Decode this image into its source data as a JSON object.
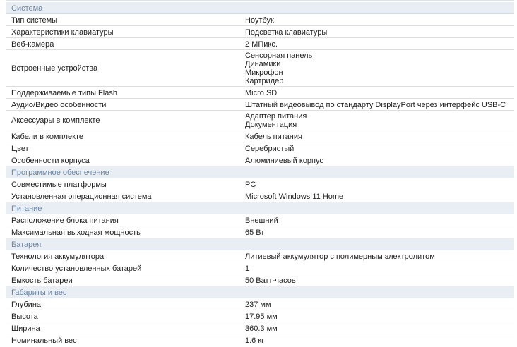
{
  "sections": [
    {
      "title": "Система",
      "rows": [
        {
          "label": "Тип системы",
          "values": [
            "Ноутбук"
          ]
        },
        {
          "label": "Характеристики клавиатуры",
          "values": [
            "Подсветка клавиатуры"
          ]
        },
        {
          "label": "Веб-камера",
          "values": [
            "2 МПикс."
          ]
        },
        {
          "label": "Встроенные устройства",
          "values": [
            "Сенсорная панель",
            "Динамики",
            "Микрофон",
            "Картридер"
          ]
        },
        {
          "label": "Поддерживаемые типы Flash",
          "values": [
            "Micro SD"
          ]
        },
        {
          "label": "Аудио/Видео особенности",
          "values": [
            "Штатный видеовывод по стандарту DisplayPort через интерфейс USB-C"
          ]
        },
        {
          "label": "Аксессуары в комплекте",
          "values": [
            "Адаптер питания",
            "Документация"
          ]
        },
        {
          "label": "Кабели в комплекте",
          "values": [
            "Кабель питания"
          ]
        },
        {
          "label": "Цвет",
          "values": [
            "Серебристый"
          ]
        },
        {
          "label": "Особенности корпуса",
          "values": [
            "Алюминиевый корпус"
          ]
        }
      ]
    },
    {
      "title": "Программное обеспечение",
      "rows": [
        {
          "label": "Совместимые платформы",
          "values": [
            "PC"
          ]
        },
        {
          "label": "Установленная операционная система",
          "values": [
            "Microsoft Windows 11 Home"
          ]
        }
      ]
    },
    {
      "title": "Питание",
      "rows": [
        {
          "label": "Расположение блока питания",
          "values": [
            "Внешний"
          ]
        },
        {
          "label": "Максимальная выходная мощность",
          "values": [
            "65 Вт"
          ]
        }
      ]
    },
    {
      "title": "Батарея",
      "rows": [
        {
          "label": "Технология аккумулятора",
          "values": [
            "Литиевый аккумулятор с полимерным электролитом"
          ]
        },
        {
          "label": "Количество установленных батарей",
          "values": [
            "1"
          ]
        },
        {
          "label": "Емкость батареи",
          "values": [
            "50 Ватт-часов"
          ]
        }
      ]
    },
    {
      "title": "Габариты и вес",
      "rows": [
        {
          "label": "Глубина",
          "values": [
            "237 мм"
          ]
        },
        {
          "label": "Высота",
          "values": [
            "17.95 мм"
          ]
        },
        {
          "label": "Ширина",
          "values": [
            "360.3 мм"
          ]
        },
        {
          "label": "Номинальный вес",
          "values": [
            "1.6 кг"
          ]
        }
      ]
    }
  ]
}
